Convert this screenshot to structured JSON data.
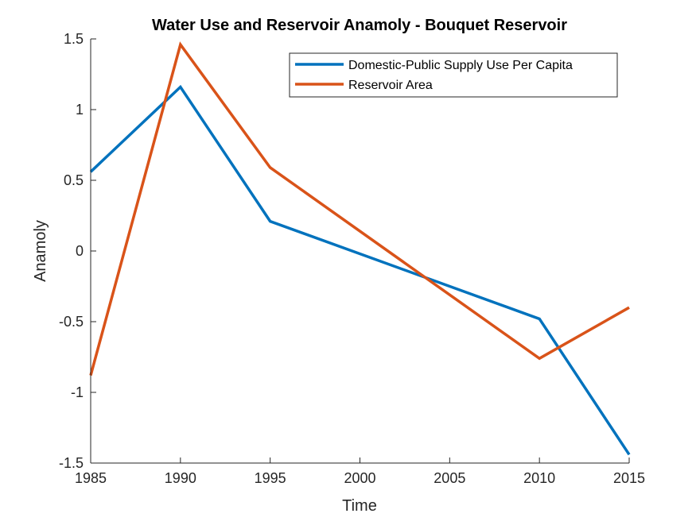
{
  "chart_data": {
    "type": "line",
    "title": "Water Use and Reservoir Anamoly - Bouquet Reservoir",
    "xlabel": "Time",
    "ylabel": "Anamoly",
    "x": [
      1985,
      1990,
      1995,
      2010,
      2015
    ],
    "xlim": [
      1985,
      2015
    ],
    "ylim": [
      -1.5,
      1.5
    ],
    "xticks": [
      "1985",
      "1990",
      "1995",
      "2000",
      "2005",
      "2010",
      "2015"
    ],
    "yticks": [
      "-1.5",
      "-1",
      "-0.5",
      "0",
      "0.5",
      "1",
      "1.5"
    ],
    "grid": false,
    "legend_position": "top-right",
    "series": [
      {
        "name": "Domestic-Public Supply Use Per Capita",
        "color": "#0072BD",
        "values": [
          0.56,
          1.16,
          0.21,
          -0.48,
          -1.44
        ]
      },
      {
        "name": "Reservoir Area",
        "color": "#D95319",
        "values": [
          -0.88,
          1.46,
          0.59,
          -0.76,
          -0.4
        ]
      }
    ]
  }
}
